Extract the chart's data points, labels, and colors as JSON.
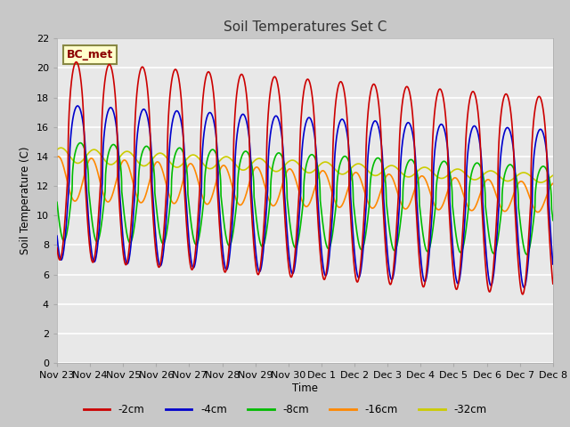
{
  "title": "Soil Temperatures Set C",
  "xlabel": "Time",
  "ylabel": "Soil Temperature (C)",
  "ylim": [
    0,
    22
  ],
  "yticks": [
    0,
    2,
    4,
    6,
    8,
    10,
    12,
    14,
    16,
    18,
    20,
    22
  ],
  "xtick_labels": [
    "Nov 23",
    "Nov 24",
    "Nov 25",
    "Nov 26",
    "Nov 27",
    "Nov 28",
    "Nov 29",
    "Nov 30",
    "Dec 1",
    "Dec 2",
    "Dec 3",
    "Dec 4",
    "Dec 5",
    "Dec 6",
    "Dec 7",
    "Dec 8"
  ],
  "annotation_text": "BC_met",
  "colors": {
    "-2cm": "#cc0000",
    "-4cm": "#0000cc",
    "-8cm": "#00bb00",
    "-16cm": "#ff8800",
    "-32cm": "#cccc00"
  },
  "legend_labels": [
    "-2cm",
    "-4cm",
    "-8cm",
    "-16cm",
    "-32cm"
  ],
  "bg_color": "#c8c8c8",
  "plot_bg_color": "#e8e8e8",
  "linewidth": 1.2
}
